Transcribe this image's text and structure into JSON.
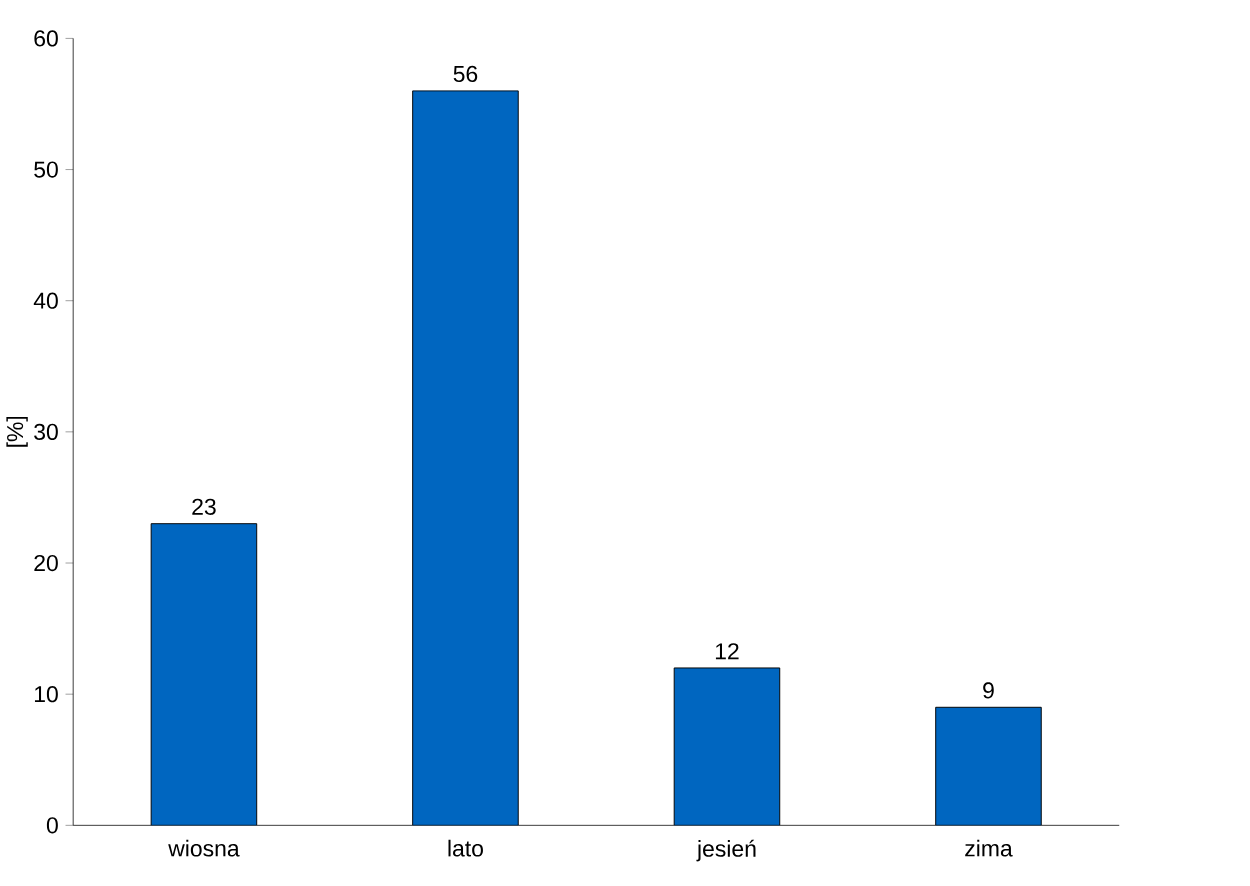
{
  "chart_data": {
    "type": "bar",
    "ylabel": "[%]",
    "categories": [
      "wiosna",
      "lato",
      "jesień",
      "zima"
    ],
    "values": [
      23,
      56,
      12,
      9
    ],
    "color": "#0066c0",
    "ylim": [
      0,
      60
    ],
    "yticks": [
      0,
      10,
      20,
      30,
      40,
      50,
      60
    ],
    "data_labels": true
  }
}
